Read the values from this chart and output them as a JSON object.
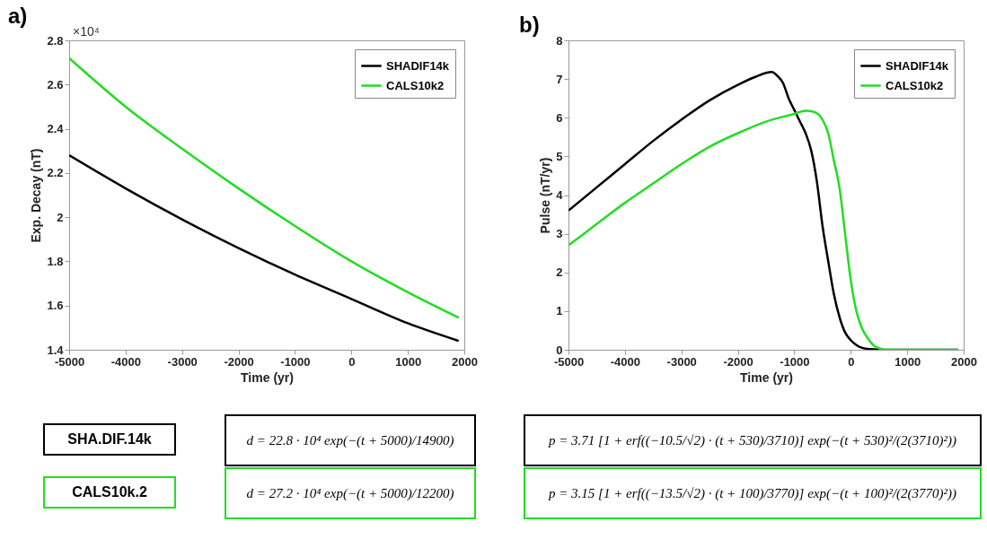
{
  "chart_data": [
    {
      "type": "line",
      "title": "a)",
      "xlabel": "Time (yr)",
      "ylabel": "Exp. Decay (nT)",
      "xlim": [
        -5000,
        2000
      ],
      "xticks": [
        -5000,
        -4000,
        -3000,
        -2000,
        -1000,
        0,
        1000,
        2000
      ],
      "ylim": [
        1.4,
        2.8
      ],
      "yticks": [
        1.4,
        1.6,
        1.8,
        2,
        2.2,
        2.4,
        2.6,
        2.8
      ],
      "legend": "top right",
      "grid": false,
      "x": [
        -5000,
        -4000,
        -3000,
        -2000,
        -1000,
        0,
        1000,
        1900
      ],
      "series": [
        {
          "name": "SHADIF14k",
          "color": "#000000",
          "values": [
            2.28,
            2.13,
            1.99,
            1.86,
            1.74,
            1.63,
            1.52,
            1.44
          ]
        },
        {
          "name": "CALS10k2",
          "color": "#22dd22",
          "values": [
            2.72,
            2.5,
            2.31,
            2.13,
            1.96,
            1.8,
            1.66,
            1.545
          ]
        }
      ],
      "annotations": [
        "×10⁴",
        "SHA.DIF.14k",
        "d = 22.8 · 10⁴ exp(−(t + 5000)/14900)",
        "CALS10k.2",
        "d = 27.2 · 10⁴ exp(−(t + 5000)/12200)"
      ]
    },
    {
      "type": "line",
      "title": "b)",
      "xlabel": "Time (yr)",
      "ylabel": "Pulse (nT/yr)",
      "xlim": [
        -5000,
        2000
      ],
      "xticks": [
        -5000,
        -4000,
        -3000,
        -2000,
        -1000,
        0,
        1000,
        2000
      ],
      "ylim": [
        0,
        8
      ],
      "yticks": [
        0,
        1,
        2,
        3,
        4,
        5,
        6,
        7,
        8
      ],
      "legend": "top right",
      "grid": false,
      "series": [
        {
          "name": "SHADIF14k",
          "color": "#000000",
          "x": [
            -5000,
            -4500,
            -4000,
            -3500,
            -3000,
            -2500,
            -2000,
            -1700,
            -1400,
            -1300,
            -1200,
            -1100,
            -1000,
            -900,
            -800,
            -700,
            -600,
            -500,
            -400,
            -300,
            -200,
            -100,
            0,
            100,
            200,
            400,
            600,
            1000,
            1900
          ],
          "values": [
            3.6,
            4.2,
            4.8,
            5.4,
            5.95,
            6.45,
            6.85,
            7.05,
            7.18,
            7.08,
            6.9,
            6.5,
            6.2,
            5.9,
            5.6,
            5.15,
            4.35,
            3.2,
            2.3,
            1.45,
            0.85,
            0.45,
            0.25,
            0.12,
            0.05,
            0.01,
            0,
            0,
            0
          ]
        },
        {
          "name": "CALS10k2",
          "color": "#22dd22",
          "x": [
            -5000,
            -4500,
            -4000,
            -3500,
            -3000,
            -2500,
            -2000,
            -1500,
            -1000,
            -800,
            -650,
            -500,
            -400,
            -300,
            -200,
            -100,
            0,
            100,
            200,
            300,
            400,
            500,
            600,
            1000,
            1900
          ],
          "values": [
            2.7,
            3.25,
            3.8,
            4.3,
            4.8,
            5.25,
            5.6,
            5.9,
            6.1,
            6.18,
            6.15,
            5.95,
            5.6,
            4.9,
            4.2,
            3.0,
            1.8,
            1.0,
            0.55,
            0.3,
            0.12,
            0.04,
            0,
            0,
            0
          ]
        }
      ],
      "annotations": [
        "p = 3.71 [1 + erf((−10.5/√2) · (t + 530)/3710)] exp(−(t + 530)²/(2(3710)²))",
        "p = 3.15 [1 + erf((−13.5/√2) · (t + 100)/3770)] exp(−(t + 100)²/(2(3770)²))"
      ]
    }
  ]
}
